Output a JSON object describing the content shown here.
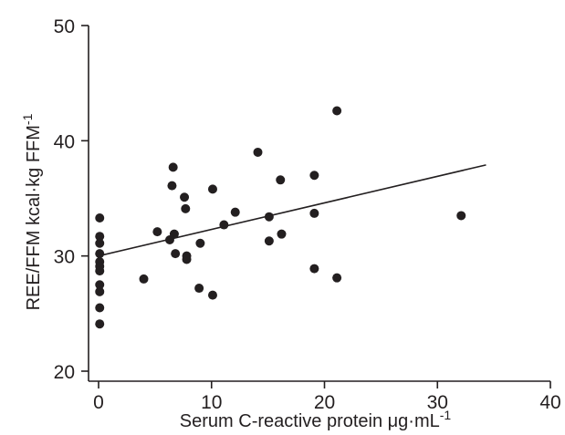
{
  "chart_data": {
    "type": "scatter",
    "title": "",
    "xlabel_main": "Serum C-reactive protein μg·mL",
    "xlabel_sup": "-1",
    "ylabel_main": "REE/FFM kcal·kg FFM",
    "ylabel_sup": "-1",
    "xlim": [
      0,
      40
    ],
    "ylim": [
      20,
      50
    ],
    "x_ticks": [
      0,
      10,
      20,
      30,
      40
    ],
    "y_ticks": [
      20,
      30,
      40,
      50
    ],
    "x_tick_labels": [
      "0",
      "10",
      "20",
      "30",
      "40"
    ],
    "y_tick_labels": [
      "20",
      "30",
      "40",
      "50"
    ],
    "grid": false,
    "points": [
      {
        "x": 0.1,
        "y": 33.3
      },
      {
        "x": 0.1,
        "y": 31.7
      },
      {
        "x": 0.1,
        "y": 31.1
      },
      {
        "x": 0.1,
        "y": 30.2
      },
      {
        "x": 0.1,
        "y": 29.5
      },
      {
        "x": 0.1,
        "y": 29.1
      },
      {
        "x": 0.1,
        "y": 28.7
      },
      {
        "x": 0.1,
        "y": 27.5
      },
      {
        "x": 0.1,
        "y": 26.9
      },
      {
        "x": 0.1,
        "y": 25.5
      },
      {
        "x": 0.1,
        "y": 24.1
      },
      {
        "x": 4.0,
        "y": 28.0
      },
      {
        "x": 5.2,
        "y": 32.1
      },
      {
        "x": 6.3,
        "y": 31.4
      },
      {
        "x": 6.5,
        "y": 36.1
      },
      {
        "x": 6.6,
        "y": 37.7
      },
      {
        "x": 6.7,
        "y": 31.9
      },
      {
        "x": 6.8,
        "y": 30.2
      },
      {
        "x": 7.6,
        "y": 35.1
      },
      {
        "x": 7.7,
        "y": 34.1
      },
      {
        "x": 7.8,
        "y": 30.0
      },
      {
        "x": 7.8,
        "y": 29.7
      },
      {
        "x": 9.0,
        "y": 31.1
      },
      {
        "x": 8.9,
        "y": 27.2
      },
      {
        "x": 10.1,
        "y": 35.8
      },
      {
        "x": 10.1,
        "y": 26.6
      },
      {
        "x": 11.1,
        "y": 32.7
      },
      {
        "x": 12.1,
        "y": 33.8
      },
      {
        "x": 14.1,
        "y": 39.0
      },
      {
        "x": 15.1,
        "y": 33.4
      },
      {
        "x": 15.1,
        "y": 31.3
      },
      {
        "x": 16.1,
        "y": 36.6
      },
      {
        "x": 16.2,
        "y": 31.9
      },
      {
        "x": 19.1,
        "y": 37.0
      },
      {
        "x": 19.1,
        "y": 33.7
      },
      {
        "x": 19.1,
        "y": 28.9
      },
      {
        "x": 21.1,
        "y": 42.6
      },
      {
        "x": 21.1,
        "y": 28.1
      },
      {
        "x": 32.1,
        "y": 33.5
      }
    ],
    "fit_line": {
      "x": [
        0,
        34.3
      ],
      "y": [
        30.0,
        37.9
      ]
    }
  }
}
